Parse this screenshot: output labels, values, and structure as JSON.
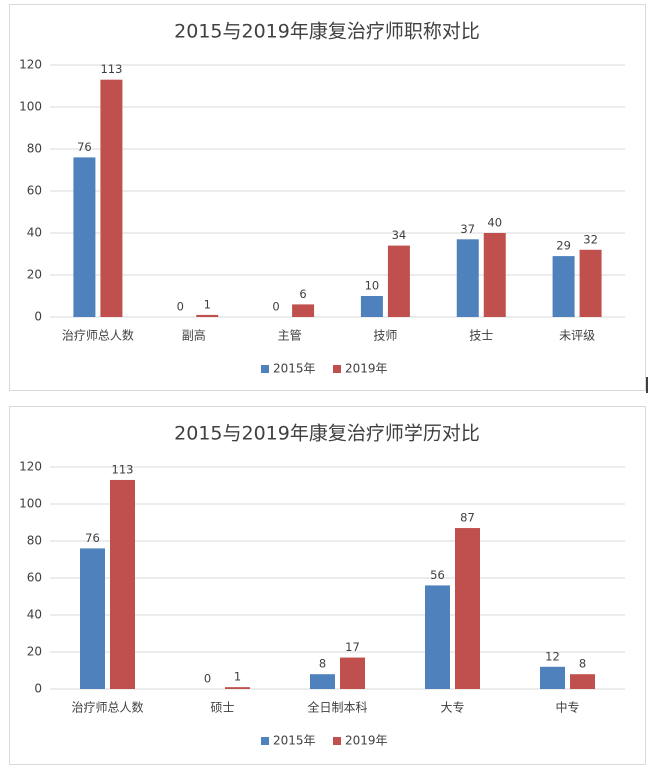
{
  "chart_data": [
    {
      "type": "bar",
      "title": "2015与2019年康复治疗师职称对比",
      "categories": [
        "治疗师总人数",
        "副高",
        "主管",
        "技师",
        "技士",
        "未评级"
      ],
      "series": [
        {
          "name": "2015年",
          "color": "#4f81bd",
          "values": [
            76,
            0,
            0,
            10,
            37,
            29
          ]
        },
        {
          "name": "2019年",
          "color": "#c0504d",
          "values": [
            113,
            1,
            6,
            34,
            40,
            32
          ]
        }
      ],
      "ylim": [
        0,
        120
      ],
      "yticks": [
        0,
        20,
        40,
        60,
        80,
        100,
        120
      ],
      "grid": true,
      "legend": "bottom"
    },
    {
      "type": "bar",
      "title": "2015与2019年康复治疗师学历对比",
      "categories": [
        "治疗师总人数",
        "硕士",
        "全日制本科",
        "大专",
        "中专"
      ],
      "series": [
        {
          "name": "2015年",
          "color": "#4f81bd",
          "values": [
            76,
            0,
            8,
            56,
            12
          ]
        },
        {
          "name": "2019年",
          "color": "#c0504d",
          "values": [
            113,
            1,
            17,
            87,
            8
          ]
        }
      ],
      "ylim": [
        0,
        120
      ],
      "yticks": [
        0,
        20,
        40,
        60,
        80,
        100,
        120
      ],
      "grid": true,
      "legend": "bottom"
    }
  ]
}
